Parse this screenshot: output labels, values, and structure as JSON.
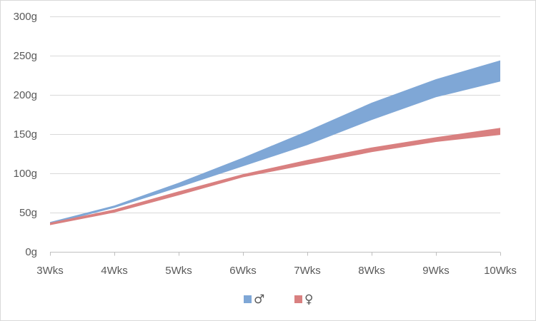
{
  "chart_data": {
    "type": "area",
    "subtype": "range-band",
    "categories": [
      "3Wks",
      "4Wks",
      "5Wks",
      "6Wks",
      "7Wks",
      "8Wks",
      "9Wks",
      "10Wks"
    ],
    "y_tick_labels": [
      "0g",
      "50g",
      "100g",
      "150g",
      "200g",
      "250g",
      "300g"
    ],
    "y_ticks": [
      0,
      50,
      100,
      150,
      200,
      250,
      300
    ],
    "ylim": [
      0,
      300
    ],
    "grid": true,
    "legend_position": "bottom",
    "series": [
      {
        "name": "♂",
        "color": "#7FA7D6",
        "low": [
          35,
          56,
          82,
          109,
          136,
          168,
          197,
          217
        ],
        "high": [
          38,
          59,
          88,
          120,
          154,
          190,
          220,
          244
        ]
      },
      {
        "name": "♀",
        "color": "#D98080",
        "low": [
          34,
          50,
          72,
          95,
          111,
          127,
          140,
          149
        ],
        "high": [
          37,
          54,
          77,
          99,
          117,
          133,
          146,
          158
        ]
      }
    ]
  }
}
